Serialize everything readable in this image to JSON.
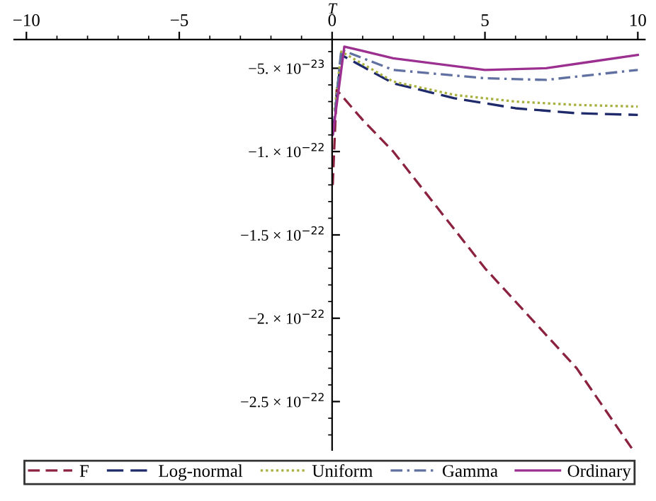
{
  "chart_data": {
    "type": "line",
    "xlabel": "T",
    "xlim": [
      -10.4,
      10.23
    ],
    "ylim": [
      -2.79e-22,
      -3.28e-23
    ],
    "xticks": [
      {
        "value": -10,
        "label": "−10"
      },
      {
        "value": -5,
        "label": "−5"
      },
      0,
      5,
      10
    ],
    "yticks": [
      {
        "value": -5e-23,
        "label": "−5. × 10$^{−23}$"
      },
      {
        "value": -1e-22,
        "label": "−1. × 10$^{−22}$"
      },
      {
        "value": -1.5e-22,
        "label": "−1.5 × 10$^{−22}$"
      },
      {
        "value": -2e-22,
        "label": "−2. × 10$^{−22}$"
      },
      {
        "value": -2.5e-22,
        "label": "−2.5 × 10$^{−22}$"
      }
    ],
    "grid": false,
    "legend": "bottom",
    "marker": "none",
    "series": [
      {
        "name": "F",
        "color": "#8b2240",
        "line_style": "dashed",
        "x": [
          0.02,
          0.15,
          1,
          2,
          5,
          8,
          9.8
        ],
        "values": [
          -1.2e-22,
          -6.3e-23,
          -8.1e-23,
          -1e-22,
          -1.7e-22,
          -2.3e-22,
          -2.78e-22
        ]
      },
      {
        "name": "Log-normal",
        "color": "#1f2a6b",
        "line_style": "longdash",
        "x": [
          0.02,
          0.3,
          2,
          4,
          6,
          8,
          10
        ],
        "values": [
          -9e-23,
          -4.2e-23,
          -5.9e-23,
          -6.8e-23,
          -7.4e-23,
          -7.7e-23,
          -7.8e-23
        ]
      },
      {
        "name": "Uniform",
        "color": "#a8b040",
        "line_style": "dotted",
        "x": [
          0.08,
          0.3,
          2,
          4,
          6,
          8,
          10
        ],
        "values": [
          -7.5e-23,
          -4e-23,
          -5.8e-23,
          -6.6e-23,
          -7e-23,
          -7.2e-23,
          -7.3e-23
        ]
      },
      {
        "name": "Gamma",
        "color": "#6070a0",
        "line_style": "dashdot",
        "x": [
          0.02,
          0.3,
          2,
          5,
          7,
          10
        ],
        "values": [
          -9e-23,
          -3.9e-23,
          -5.1e-23,
          -5.6e-23,
          -5.7e-23,
          -5.1e-23
        ]
      },
      {
        "name": "Ordinary",
        "color": "#9b3090",
        "line_style": "solid",
        "x": [
          0.02,
          0.4,
          2,
          5,
          7,
          8.5,
          10
        ],
        "values": [
          -9e-23,
          -3.7e-23,
          -4.4e-23,
          -5.1e-23,
          -5e-23,
          -4.6e-23,
          -4.2e-23
        ]
      }
    ]
  }
}
